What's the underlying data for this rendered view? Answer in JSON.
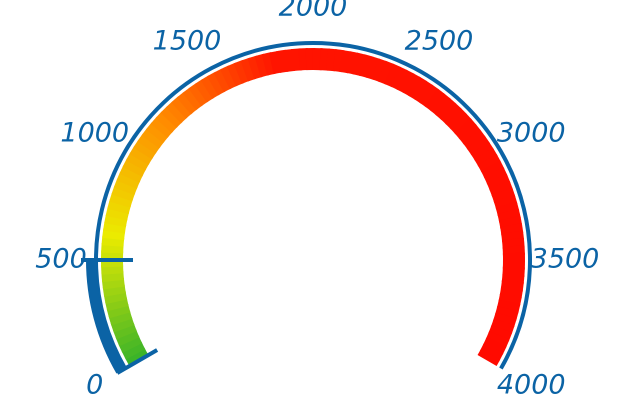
{
  "chart_data": {
    "type": "gauge",
    "value": 500,
    "ylim": [
      0,
      4000
    ],
    "yticks": [
      0,
      500,
      1000,
      1500,
      2000,
      2500,
      3000,
      3500,
      4000
    ],
    "color": "#0b63a5"
  }
}
